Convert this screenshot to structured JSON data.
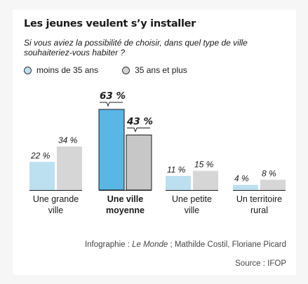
{
  "title": "Les jeunes veulent s’y installer",
  "subtitle": "Si vous aviez la possibilité de choisir, dans quel type de ville souhaiteriez-vous habiter ?",
  "legend": {
    "items": [
      {
        "label": "moins de 35 ans",
        "color": "#bde0f1"
      },
      {
        "label": "35 ans et plus",
        "color": "#d3d3d3"
      }
    ]
  },
  "chart_data": {
    "type": "bar",
    "categories": [
      {
        "lines": [
          "Une grande",
          "ville"
        ],
        "bold": false
      },
      {
        "lines": [
          "Une ville",
          "moyenne"
        ],
        "bold": true
      },
      {
        "lines": [
          "Une petite",
          "ville"
        ],
        "bold": false
      },
      {
        "lines": [
          "Un territoire",
          "rural"
        ],
        "bold": false
      }
    ],
    "series": [
      {
        "name": "moins de 35 ans",
        "values": [
          22,
          63,
          11,
          4
        ],
        "labels": [
          "22 %",
          "63 %",
          "11 %",
          "4 %"
        ]
      },
      {
        "name": "35 ans et plus",
        "values": [
          34,
          43,
          15,
          8
        ],
        "labels": [
          "34 %",
          "43 %",
          "15 %",
          "8 %"
        ]
      }
    ],
    "highlight_category_index": 1,
    "colors": {
      "series1": "#bde0f1",
      "series1_highlight": "#5ab6e4",
      "series2": "#d6d6d6",
      "series2_highlight": "#c7c7c7",
      "highlight_stroke": "#1a1a1a",
      "baseline": "#1a1a1a"
    },
    "ylim": [
      0,
      63
    ],
    "grid": false,
    "legend_position": "top-left"
  },
  "footer": {
    "credit_prefix": "Infographie : ",
    "credit_source": "Le Monde",
    "credit_suffix": " ; Mathilde Costil, Floriane Picard",
    "source": "Source : IFOP"
  }
}
